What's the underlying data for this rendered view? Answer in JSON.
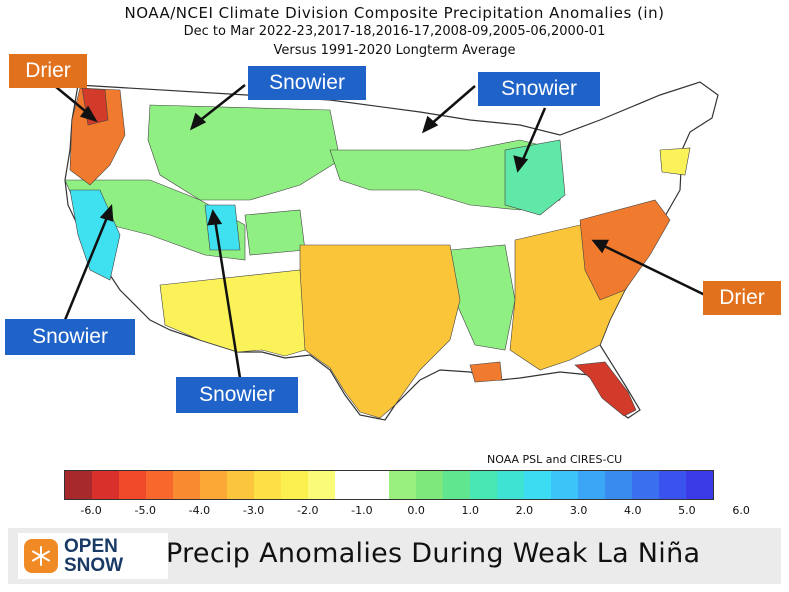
{
  "title": {
    "line1": "NOAA/NCEI Climate Division Composite Precipitation Anomalies (in)",
    "line2": "Dec to Mar  2022-23,2017-18,2016-17,2008-09,2005-06,2000-01",
    "line3": "Versus 1991-2020 Longterm Average"
  },
  "callouts": {
    "drier_nw": "Drier",
    "snowier_north_rockies": "Snowier",
    "snowier_upper_midwest": "Snowier",
    "snowier_great_lakes": "Snowier",
    "drier_southeast": "Drier",
    "snowier_sierra": "Snowier",
    "snowier_utah": "Snowier"
  },
  "colorbar": {
    "credit": "NOAA PSL and CIRES-CU",
    "tick_labels": [
      "-6.0",
      "-5.0",
      "-4.0",
      "-3.0",
      "-2.0",
      "-1.0",
      "0.0",
      "1.0",
      "2.0",
      "3.0",
      "4.0",
      "5.0",
      "6.0"
    ],
    "colors": [
      "#a8292b",
      "#d9302c",
      "#f04a2a",
      "#f8682c",
      "#fa8a30",
      "#fba837",
      "#fcc63c",
      "#fde043",
      "#fbf04e",
      "#fbfb7a",
      "#ffffff",
      "#ffffff",
      "#9af07e",
      "#7fe87c",
      "#5fe68f",
      "#48e6b2",
      "#3fe3d3",
      "#3cdcf2",
      "#3cc3f7",
      "#3aa6f5",
      "#3a8bf0",
      "#3a6ff0",
      "#3a52ee",
      "#3a3ae6"
    ]
  },
  "footer": {
    "logo_line1": "OPEN",
    "logo_line2": "SNOW",
    "headline": "Precip Anomalies During Weak La Niña"
  },
  "map_colors": {
    "dry_strong": "#d23a2a",
    "dry_mid": "#f07a2e",
    "dry_light": "#fbc53a",
    "dry_faint": "#fbf25a",
    "wet_light": "#8fef82",
    "wet_mid": "#5fe8a8",
    "wet_strong": "#3fe0f0",
    "neutral": "#ffffff"
  }
}
